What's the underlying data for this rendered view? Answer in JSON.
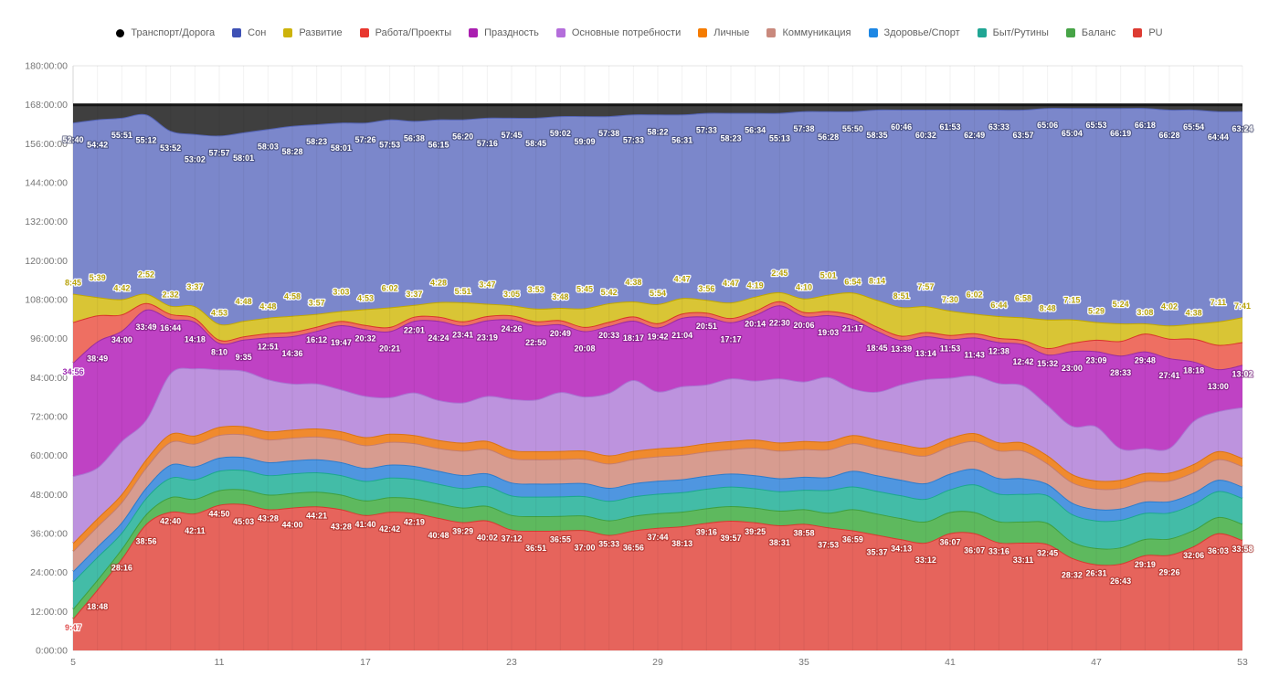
{
  "chart_data": {
    "type": "area",
    "stacked": true,
    "title": "",
    "xlabel": "",
    "ylabel": "",
    "total_per_point_hours": 168,
    "grid": true,
    "legend_position": "top",
    "x": [
      5,
      6,
      7,
      8,
      9,
      10,
      11,
      12,
      13,
      14,
      15,
      16,
      17,
      18,
      19,
      20,
      21,
      22,
      23,
      24,
      25,
      26,
      27,
      28,
      29,
      30,
      31,
      32,
      33,
      34,
      35,
      36,
      37,
      38,
      39,
      40,
      41,
      42,
      43,
      44,
      45,
      46,
      47,
      48,
      49,
      50,
      51,
      52,
      53
    ],
    "x_ticks": [
      5,
      11,
      17,
      23,
      29,
      35,
      41,
      47,
      53
    ],
    "y_axis": {
      "min": 0,
      "max": 180,
      "step": 12,
      "tick_labels": [
        "0:00:00",
        "12:00:00",
        "24:00:00",
        "36:00:00",
        "48:00:00",
        "60:00:00",
        "72:00:00",
        "84:00:00",
        "96:00:00",
        "108:00:00",
        "120:00:00",
        "132:00:00",
        "144:00:00",
        "156:00:00",
        "168:00:00",
        "180:00:00"
      ]
    },
    "series": [
      {
        "name": "Транспорт/Дорога",
        "slug": "transport-doroga",
        "marker_shape": "circle",
        "marker": "#000000",
        "fill": "#3f3f3f",
        "stroke": "#151515",
        "stroke_width": 3,
        "estimated": true,
        "values": [
          5.5,
          4.5,
          4,
          3,
          8,
          9,
          9.5,
          8.5,
          7.5,
          6.5,
          6,
          5.5,
          5.5,
          4.5,
          5,
          4.5,
          4.5,
          4,
          4,
          4,
          3.5,
          3.5,
          3.5,
          3,
          3,
          3,
          2.5,
          2.5,
          2.5,
          2.5,
          2,
          2,
          2,
          1.5,
          1.5,
          1.5,
          1.5,
          1.5,
          1.5,
          1.5,
          1,
          1,
          1,
          1,
          1,
          1.5,
          1.5,
          2,
          2
        ]
      },
      {
        "name": "Сон",
        "slug": "son",
        "marker_shape": "square",
        "marker": "#3e51b5",
        "fill": "#7b87cb",
        "stroke": "#5565b8",
        "stroke_width": 2,
        "values": [
          52.67,
          54.7,
          55.85,
          55.2,
          53.87,
          53.03,
          57.95,
          58.02,
          58.05,
          58.47,
          58.38,
          58.02,
          57.43,
          57.88,
          56.63,
          56.25,
          56.33,
          57.27,
          57.75,
          58.75,
          59.03,
          59.15,
          57.63,
          57.55,
          58.37,
          56.52,
          57.55,
          58.38,
          56.57,
          55.22,
          57.63,
          56.47,
          55.83,
          58.58,
          60.77,
          60.53,
          61.88,
          62.82,
          63.55,
          63.95,
          65.1,
          65.07,
          65.88,
          66.32,
          66.3,
          66.47,
          65.9,
          64.73,
          63.4
        ],
        "labels": [
          "52:40",
          "54:42",
          "55:51",
          "55:12",
          "53:52",
          "53:02",
          "57:57",
          "58:01",
          "58:03",
          "58:28",
          "58:23",
          "58:01",
          "57:26",
          "57:53",
          "56:38",
          "56:15",
          "56:20",
          "57:16",
          "57:45",
          "58:45",
          "59:02",
          "59:09",
          "57:38",
          "57:33",
          "58:22",
          "56:31",
          "57:33",
          "58:23",
          "56:34",
          "55:13",
          "57:38",
          "56:28",
          "55:50",
          "58:35",
          "60:46",
          "60:32",
          "61:53",
          "62:49",
          "63:33",
          "63:57",
          "65:06",
          "65:04",
          "65:53",
          "66:19",
          "66:18",
          "66:28",
          "65:54",
          "64:44",
          "63:24"
        ],
        "label_fill": "#ffffff",
        "label_halo": "rgba(50,55,95,0.55)",
        "label_dy": [
          22,
          31
        ]
      },
      {
        "name": "Развитие",
        "slug": "razvitie",
        "marker_shape": "square",
        "marker": "#cdb30b",
        "fill": "#d9c535",
        "stroke": "#c1a700",
        "stroke_width": 2,
        "values": [
          8.75,
          5.65,
          4.7,
          2.87,
          2.53,
          3.62,
          4.88,
          4.8,
          4.8,
          4.97,
          3.95,
          3.05,
          4.88,
          6.03,
          3.62,
          4.47,
          5.85,
          3.78,
          3.08,
          3.88,
          3.8,
          5.75,
          5.7,
          4.63,
          5.9,
          4.78,
          3.93,
          4.78,
          4.32,
          2.75,
          4.17,
          5.02,
          6.9,
          8.23,
          8.85,
          7.95,
          7.5,
          6.03,
          6.73,
          6.97,
          8.8,
          7.25,
          5.48,
          5.4,
          3.13,
          4.03,
          4.63,
          7.18,
          7.68
        ],
        "labels": [
          "8:45",
          "5:39",
          "4:42",
          "2:52",
          "2:32",
          "3:37",
          "4:53",
          "4:48",
          "4:48",
          "4:58",
          "3:57",
          "3:03",
          "4:53",
          "6:02",
          "3:37",
          "4:28",
          "5:51",
          "3:47",
          "3:05",
          "3:53",
          "3:48",
          "5:45",
          "5:42",
          "4:38",
          "5:54",
          "4:47",
          "3:56",
          "4:47",
          "4:19",
          "2:45",
          "4:10",
          "5:01",
          "6:54",
          "8:14",
          "8:51",
          "7:57",
          "7:30",
          "6:02",
          "6:44",
          "6:58",
          "8:48",
          "7:15",
          "5:29",
          "5:24",
          "3:08",
          "4:02",
          "4:38",
          "7:11",
          "7:41"
        ],
        "label_fill": "#b8a30c",
        "label_halo": "rgba(255,255,255,0.92)",
        "label_dy": [
          -9,
          -18
        ]
      },
      {
        "name": "Работа/Проекты",
        "slug": "rabota-proekty",
        "marker_shape": "square",
        "marker": "#e8372f",
        "fill": "#ee6f62",
        "stroke": "#d9342b",
        "stroke_width": 2,
        "estimated": true,
        "values": [
          12.5,
          8,
          5,
          2,
          1.5,
          1.2,
          1,
          1,
          1.3,
          1.3,
          1.3,
          1.3,
          1.3,
          1.3,
          1.3,
          1.3,
          1.3,
          1.3,
          1.3,
          1.3,
          1.3,
          1.3,
          1.3,
          1.3,
          1.3,
          1.3,
          1.3,
          1.3,
          1.3,
          1.3,
          1.3,
          1.3,
          1.3,
          1.3,
          1.3,
          1.3,
          1.3,
          1.3,
          1.3,
          1.3,
          2,
          2.5,
          3.5,
          4.5,
          5.5,
          6,
          7,
          7.5,
          7
        ]
      },
      {
        "name": "Праздность",
        "slug": "prazdnost",
        "marker_shape": "square",
        "marker": "#aa1fb0",
        "fill": "#bf42c4",
        "stroke": "#992d9e",
        "stroke_width": 2,
        "values": [
          34.93,
          38.82,
          34,
          33.82,
          16.73,
          14.3,
          8.17,
          9.58,
          12.85,
          14.6,
          16.2,
          19.78,
          20.53,
          20.35,
          22.02,
          24.4,
          23.68,
          23.32,
          24.43,
          22.83,
          20.82,
          20.13,
          20.55,
          18.28,
          19.7,
          21.07,
          20.85,
          17.28,
          20.23,
          22.5,
          20.1,
          19.05,
          21.28,
          18.75,
          13.65,
          13.23,
          11.88,
          11.72,
          12.63,
          12.7,
          15.53,
          23,
          23.15,
          28.55,
          29.8,
          27.68,
          18.3,
          13,
          13.03
        ],
        "labels": [
          "34:56",
          "38:49",
          "34:00",
          "33:49",
          "16:44",
          "14:18",
          "8:10",
          "9:35",
          "12:51",
          "14:36",
          "16:12",
          "19:47",
          "20:32",
          "20:21",
          "22:01",
          "24:24",
          "23:41",
          "23:19",
          "24:26",
          "22:50",
          "20:49",
          "20:08",
          "20:33",
          "18:17",
          "19:42",
          "21:04",
          "20:51",
          "17:17",
          "20:14",
          "22:30",
          "20:06",
          "19:03",
          "21:17",
          "18:45",
          "13:39",
          "13:14",
          "11:53",
          "11:43",
          "12:38",
          "12:42",
          "15:32",
          "23:00",
          "23:09",
          "28:33",
          "29:48",
          "27:41",
          "18:18",
          "13:00",
          "13:02"
        ],
        "label_fill": "#ffffff",
        "label_halo": "rgba(110,20,115,0.55)",
        "first_label_fill": "#9c27b0",
        "first_label_halo": "rgba(255,255,255,0.92)",
        "label_dy": [
          13,
          22
        ]
      },
      {
        "name": "Основные потребности",
        "slug": "osnovnye-potrebnosti",
        "marker_shape": "square",
        "marker": "#b46edb",
        "fill": "#bd93de",
        "stroke": "#aa75d2",
        "stroke_width": 2,
        "estimated": true,
        "values": [
          20.57,
          15.63,
          16.28,
          12.28,
          18.7,
          20.67,
          17.67,
          17.05,
          16.03,
          14.16,
          13.82,
          12.88,
          12.69,
          11.24,
          13.11,
          12.28,
          12.36,
          13.8,
          15.74,
          15.89,
          18.13,
          16.67,
          19.27,
          21.81,
          17.5,
          18.61,
          18.1,
          19.31,
          18.16,
          19.71,
          18.33,
          19.78,
          14.41,
          14.72,
          18.41,
          20.99,
          18.52,
          17.71,
          18.22,
          17.6,
          15.52,
          14.85,
          16.67,
          9.71,
          7.65,
          7.59,
          13.27,
          12.24,
          15.62
        ]
      },
      {
        "name": "Личные",
        "slug": "lichnye",
        "marker_shape": "square",
        "marker": "#f57c00",
        "fill": "#f08a2e",
        "stroke": "#da7414",
        "stroke_width": 2,
        "estimated": true,
        "values": [
          2.5,
          2.5,
          2.5,
          2.5,
          2.5,
          2.5,
          2.5,
          2.5,
          2.5,
          2.5,
          2.5,
          2.5,
          2.5,
          2.5,
          2.5,
          2.5,
          2.5,
          2.5,
          2.5,
          2.5,
          2.5,
          2.5,
          2.5,
          2.5,
          2.5,
          2.5,
          2.5,
          2.5,
          2.5,
          2.5,
          2.5,
          2.5,
          2.5,
          2.5,
          2.5,
          2.5,
          2.5,
          2.5,
          2.5,
          2.5,
          2.5,
          2.5,
          2.5,
          2.5,
          2.5,
          2.5,
          2.5,
          2.5,
          2.5
        ]
      },
      {
        "name": "Коммуникация",
        "slug": "kommunikatsiya",
        "marker_shape": "square",
        "marker": "#c9897d",
        "fill": "#d79c90",
        "stroke": "#c47d6f",
        "stroke_width": 2,
        "estimated": true,
        "values": [
          6.2,
          6.2,
          6.2,
          6.2,
          7,
          7,
          7,
          7,
          7,
          7,
          7,
          7,
          7,
          7,
          7,
          7,
          7.5,
          7.5,
          7.5,
          7.5,
          7.5,
          7.5,
          7.5,
          7.5,
          7.5,
          7.5,
          7.5,
          7.5,
          8.5,
          8.5,
          8.5,
          8.5,
          8.5,
          8.5,
          8.5,
          8.5,
          8.5,
          8.5,
          8.5,
          8.5,
          6.3,
          6.3,
          6.3,
          6.3,
          6.3,
          6.3,
          6.3,
          6.3,
          6.3
        ]
      },
      {
        "name": "Здоровье/Спорт",
        "slug": "zdorove-sport",
        "marker_shape": "square",
        "marker": "#1d87e4",
        "fill": "#4f96e0",
        "stroke": "#2d7ccc",
        "stroke_width": 2,
        "estimated": true,
        "values": [
          3.2,
          3.2,
          3.2,
          3.2,
          4,
          4,
          4,
          4,
          4,
          4,
          4,
          4,
          4,
          4,
          4,
          4,
          4,
          4,
          4,
          4,
          4,
          4,
          4,
          4,
          4,
          4,
          4,
          4,
          4,
          4,
          4,
          4,
          4.8,
          4.8,
          4.8,
          4.8,
          4.8,
          4.8,
          4.8,
          4.8,
          3.5,
          3.5,
          3.5,
          3.5,
          3.5,
          3.5,
          3.5,
          3.5,
          3.5
        ]
      },
      {
        "name": "Быт/Рутины",
        "slug": "byt-rutiny",
        "marker_shape": "square",
        "marker": "#20a694",
        "fill": "#43bca7",
        "stroke": "#1da88e",
        "stroke_width": 2,
        "estimated": true,
        "values": [
          8.4,
          7,
          5,
          5,
          6,
          6,
          6,
          6,
          6,
          6,
          6,
          6,
          6,
          6,
          6,
          6,
          6,
          6,
          6,
          6,
          6,
          6,
          6,
          6,
          6,
          6,
          6,
          6,
          6,
          6,
          6,
          7,
          7,
          7,
          7,
          7,
          7,
          8.5,
          8.5,
          8.5,
          8.5,
          8.5,
          8.5,
          8.5,
          8,
          8,
          8,
          8,
          8
        ]
      },
      {
        "name": "Баланс",
        "slug": "balans",
        "marker_shape": "square",
        "marker": "#47a447",
        "fill": "#5eb95e",
        "stroke": "#3fa03f",
        "stroke_width": 2,
        "estimated": true,
        "values": [
          3,
          3,
          3,
          3,
          4.5,
          4.5,
          4.5,
          4.5,
          4.5,
          4.5,
          4.5,
          4.5,
          4.5,
          4.5,
          4.5,
          4.5,
          4.5,
          4.5,
          4.5,
          4.5,
          4.5,
          4.5,
          4.5,
          4.5,
          4.5,
          4.5,
          4.5,
          4.5,
          4.5,
          4.5,
          4.5,
          4.5,
          6.5,
          6.5,
          6.5,
          6.5,
          6.5,
          6.5,
          6.5,
          6.5,
          6.5,
          5,
          5,
          5,
          5,
          5,
          5,
          5,
          5
        ]
      },
      {
        "name": "PU",
        "slug": "pu",
        "marker_shape": "square",
        "marker": "#dd3b32",
        "fill": "#e6645c",
        "stroke": "#d63a30",
        "stroke_width": 2,
        "values": [
          9.78,
          18.8,
          28.27,
          38.93,
          42.67,
          42.18,
          44.83,
          45.05,
          43.47,
          44,
          44.35,
          43.47,
          41.67,
          42.7,
          42.32,
          40.8,
          39.48,
          40.03,
          37.2,
          36.85,
          36.92,
          37,
          35.55,
          36.93,
          37.73,
          38.22,
          39.27,
          39.95,
          39.42,
          38.52,
          38.97,
          37.88,
          36.98,
          35.62,
          34.22,
          33.2,
          36.12,
          36.12,
          33.27,
          33.18,
          32.75,
          28.53,
          26.52,
          26.72,
          29.32,
          29.43,
          32.1,
          36.05,
          33.97
        ],
        "labels": [
          "9:47",
          "18:48",
          "28:16",
          "38:56",
          "42:40",
          "42:11",
          "44:50",
          "45:03",
          "43:28",
          "44:00",
          "44:21",
          "43:28",
          "41:40",
          "42:42",
          "42:19",
          "40:48",
          "39:29",
          "40:02",
          "37:12",
          "36:51",
          "36:55",
          "37:00",
          "35:33",
          "36:56",
          "37:44",
          "38:13",
          "39:16",
          "39:57",
          "39:25",
          "38:31",
          "38:58",
          "37:53",
          "36:59",
          "35:37",
          "34:13",
          "33:12",
          "36:07",
          "36:07",
          "33:16",
          "33:11",
          "32:45",
          "28:32",
          "26:31",
          "26:43",
          "29:19",
          "29:26",
          "32:06",
          "36:03",
          "33:58"
        ],
        "label_fill": "#ffffff",
        "label_halo": "rgba(160,40,35,0.6)",
        "first_label_fill": "#e05353",
        "first_label_halo": "rgba(255,255,255,0.92)",
        "label_dy": [
          13,
          22
        ]
      }
    ]
  }
}
